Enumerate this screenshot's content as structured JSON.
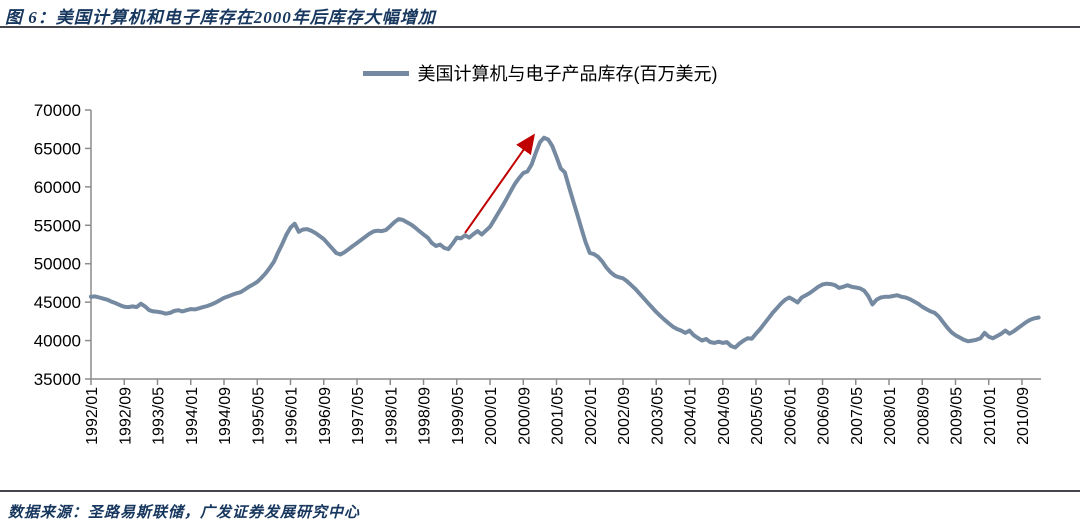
{
  "figure": {
    "title": "图 6：美国计算机和电子库存在2000年后库存大幅增加",
    "source": "数据来源：圣路易斯联储，广发证券发展研究中心"
  },
  "colors": {
    "line": "#758AA1",
    "arrow": "#C00000",
    "axis": "#8C8C8C",
    "title_text": "#17375E",
    "rule": "#46464F"
  },
  "chart_data": {
    "type": "line",
    "legend": "美国计算机与电子产品库存(百万美元)",
    "unit": "百万美元",
    "frequency": "monthly",
    "start": "1992/01",
    "ylim": [
      35000,
      70000
    ],
    "y_ticks": [
      35000,
      40000,
      45000,
      50000,
      55000,
      60000,
      65000,
      70000
    ],
    "x_tick_labels": [
      "1992/01",
      "1992/09",
      "1993/05",
      "1994/01",
      "1994/09",
      "1995/05",
      "1996/01",
      "1996/09",
      "1997/05",
      "1998/01",
      "1998/09",
      "1999/05",
      "2000/01",
      "2000/09",
      "2001/05",
      "2002/01",
      "2002/09",
      "2003/05",
      "2004/01",
      "2004/09",
      "2005/05",
      "2006/01",
      "2006/09",
      "2007/05",
      "2008/01",
      "2008/09",
      "2009/05",
      "2010/01",
      "2010/09"
    ],
    "x_tick_every_months": 8,
    "grid": false,
    "legend_position": "top-center",
    "annotation_arrow": {
      "from_month": "1999/07",
      "from_value": 54000,
      "to_month": "2000/11",
      "to_value": 66300,
      "color": "#C00000"
    },
    "series": [
      {
        "name": "美国计算机与电子产品库存(百万美元)",
        "color": "#758AA1",
        "values": [
          45700,
          45750,
          45600,
          45450,
          45300,
          45050,
          44850,
          44600,
          44400,
          44350,
          44450,
          44350,
          44800,
          44450,
          43950,
          43800,
          43750,
          43650,
          43500,
          43600,
          43850,
          43950,
          43800,
          43950,
          44100,
          44050,
          44200,
          44350,
          44500,
          44700,
          44950,
          45250,
          45550,
          45750,
          45950,
          46150,
          46300,
          46650,
          47000,
          47300,
          47650,
          48150,
          48750,
          49450,
          50250,
          51450,
          52550,
          53750,
          54700,
          55200,
          54150,
          54450,
          54500,
          54300,
          54000,
          53600,
          53200,
          52600,
          52000,
          51400,
          51200,
          51500,
          51900,
          52300,
          52700,
          53100,
          53500,
          53900,
          54200,
          54300,
          54250,
          54400,
          54900,
          55400,
          55800,
          55700,
          55400,
          55100,
          54700,
          54250,
          53800,
          53400,
          52700,
          52300,
          52500,
          52050,
          51900,
          52600,
          53400,
          53300,
          53700,
          53400,
          53850,
          54250,
          53800,
          54300,
          54800,
          55700,
          56600,
          57500,
          58450,
          59450,
          60400,
          61150,
          61800,
          62000,
          62900,
          64400,
          65800,
          66400,
          66150,
          65300,
          63900,
          62400,
          61900,
          60000,
          58200,
          56400,
          54600,
          52800,
          51400,
          51250,
          50900,
          50300,
          49500,
          48900,
          48450,
          48250,
          48100,
          47700,
          47200,
          46700,
          46100,
          45500,
          44900,
          44300,
          43700,
          43200,
          42700,
          42250,
          41800,
          41500,
          41300,
          41000,
          41300,
          40700,
          40350,
          40000,
          40200,
          39800,
          39700,
          39850,
          39700,
          39800,
          39300,
          39100,
          39600,
          40000,
          40300,
          40250,
          40900,
          41500,
          42200,
          42900,
          43600,
          44200,
          44800,
          45300,
          45600,
          45300,
          44950,
          45600,
          45900,
          46200,
          46600,
          47000,
          47300,
          47400,
          47350,
          47200,
          46850,
          47000,
          47200,
          47000,
          46900,
          46800,
          46500,
          45800,
          44700,
          45300,
          45600,
          45700,
          45700,
          45800,
          45900,
          45700,
          45600,
          45400,
          45100,
          44800,
          44400,
          44100,
          43800,
          43600,
          43100,
          42400,
          41700,
          41100,
          40700,
          40400,
          40100,
          39900,
          40000,
          40100,
          40300,
          41000,
          40500,
          40300,
          40600,
          40900,
          41300,
          40900,
          41200,
          41600,
          42000,
          42400,
          42700,
          42900,
          43000
        ]
      }
    ]
  }
}
